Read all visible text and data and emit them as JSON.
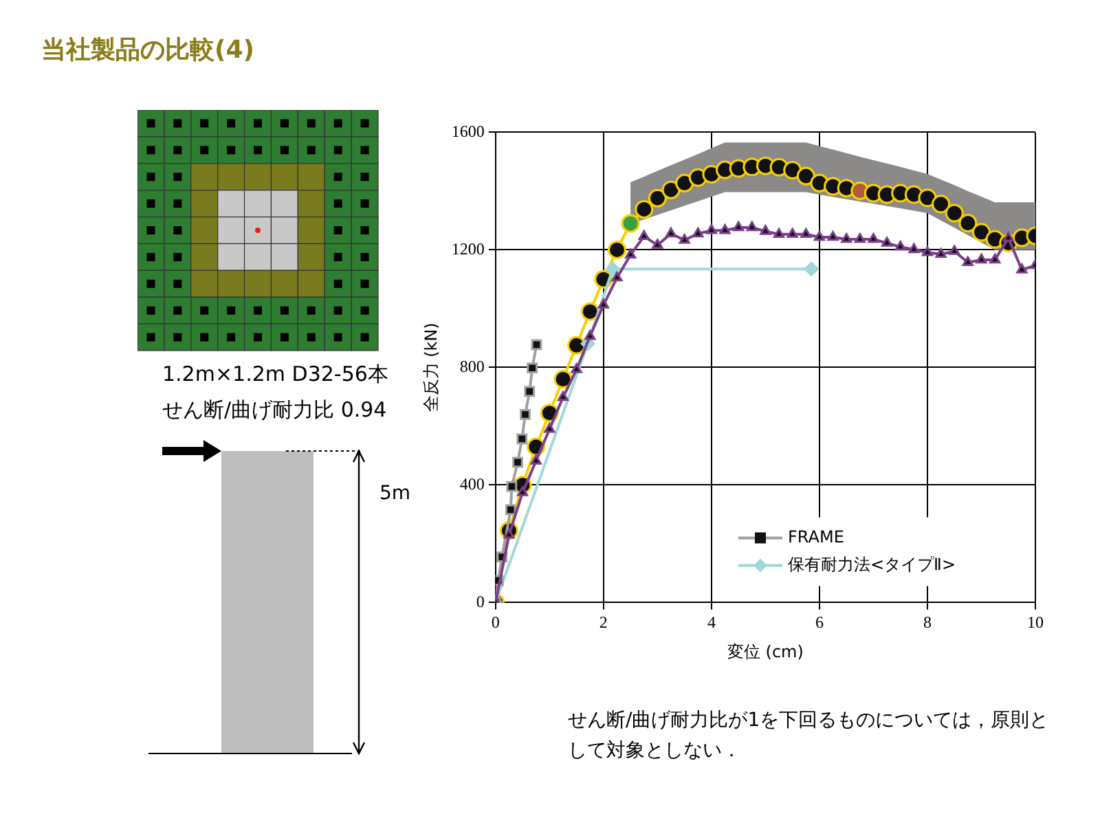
{
  "chart_data": {
    "type": "line",
    "title": "当社製品の比較(4)",
    "xlabel": "変位 (cm)",
    "ylabel": "全反力 (kN)",
    "xlim": [
      0,
      10
    ],
    "xticks": [
      0,
      2,
      4,
      6,
      8,
      10
    ],
    "ylim": [
      0,
      1600
    ],
    "yticks": [
      0,
      400,
      800,
      1200,
      1600
    ],
    "grid": true,
    "legend": "bottom right",
    "annotations": [
      "1.2m×1.2m D32-56本",
      "せん断/曲げ耐力比 0.94",
      "5m",
      "せん断/曲げ耐力比が1を下回るものについては，原則として対象としない．"
    ],
    "series": [
      {
        "color": "#7b3f8c",
        "marker": "triangle",
        "x": [
          0,
          0.25,
          0.5,
          0.75,
          1,
          1.25,
          1.5,
          1.75,
          2,
          2.25,
          2.5,
          2.75,
          3,
          3.25,
          3.5,
          3.75,
          4,
          4.25,
          4.5,
          4.75,
          5,
          5.25,
          5.5,
          5.75,
          6,
          6.25,
          6.5,
          6.75,
          7,
          7.25,
          7.5,
          7.75,
          8,
          8.25,
          8.5,
          8.75,
          9,
          9.25,
          9.5,
          9.75,
          10
        ],
        "values": [
          0,
          230,
          374,
          482,
          590,
          698,
          793,
          906,
          1013,
          1105,
          1183,
          1246,
          1216,
          1255,
          1233,
          1255,
          1266,
          1266,
          1276,
          1276,
          1263,
          1253,
          1253,
          1253,
          1243,
          1243,
          1236,
          1236,
          1236,
          1223,
          1210,
          1201,
          1191,
          1185,
          1195,
          1157,
          1166,
          1166,
          1240,
          1132,
          1147
        ]
      },
      {
        "name": "FRAME",
        "color": "#a0a0a0",
        "marker": "square",
        "x": [
          0,
          0.05,
          0.12,
          0.28,
          0.3,
          0.41,
          0.49,
          0.55,
          0.63,
          0.68,
          0.76
        ],
        "values": [
          0,
          75,
          155,
          316,
          395,
          477,
          557,
          640,
          718,
          798,
          877
        ]
      },
      {
        "name": "保有耐力法<タイプⅡ>",
        "color": "#9fd8d8",
        "marker": "diamond",
        "x": [
          0,
          1.71,
          2.17,
          5.85
        ],
        "values": [
          0,
          881,
          1135,
          1135
        ]
      },
      {
        "color": "#f5d000",
        "marker": "circle",
        "x": [
          0,
          0.25,
          0.5,
          0.75,
          1,
          1.25,
          1.5,
          1.75,
          2,
          2.25,
          2.5,
          2.75,
          3,
          3.25,
          3.5,
          3.75,
          4,
          4.25,
          4.5,
          4.75,
          5,
          5.25,
          5.5,
          5.75,
          6,
          6.25,
          6.5,
          6.75,
          7,
          7.25,
          7.5,
          7.75,
          8,
          8.25,
          8.5,
          8.75,
          9,
          9.25,
          9.5,
          9.75,
          10
        ],
        "values": [
          0,
          245,
          400,
          530,
          645,
          760,
          875,
          990,
          1100,
          1200,
          1290,
          1338,
          1376,
          1404,
          1427,
          1446,
          1457,
          1472,
          1477,
          1482,
          1486,
          1481,
          1471,
          1451,
          1427,
          1416,
          1410,
          1401,
          1393,
          1388,
          1393,
          1388,
          1377,
          1356,
          1325,
          1291,
          1260,
          1236,
          1223,
          1241,
          1248
        ],
        "colors": [
          "#111111",
          "#111111",
          "#111111",
          "#111111",
          "#111111",
          "#111111",
          "#111111",
          "#111111",
          "#111111",
          "#111111",
          "#3aa040",
          "#111111",
          "#111111",
          "#111111",
          "#111111",
          "#111111",
          "#111111",
          "#111111",
          "#111111",
          "#111111",
          "#111111",
          "#111111",
          "#111111",
          "#111111",
          "#111111",
          "#111111",
          "#111111",
          "#b05a40",
          "#111111",
          "#111111",
          "#111111",
          "#111111",
          "#111111",
          "#111111",
          "#111111",
          "#111111",
          "#111111",
          "#111111",
          "#111111",
          "#111111",
          "#111111"
        ],
        "lower": [
          null,
          null,
          null,
          null,
          null,
          null,
          null,
          null,
          null,
          null,
          1288,
          1303,
          1319,
          1334,
          1350,
          1365,
          1381,
          1396,
          1396,
          1396,
          1396,
          1396,
          1396,
          1396,
          1388,
          1380,
          1372,
          1364,
          1357,
          1349,
          1341,
          1333,
          1325,
          1300,
          1275,
          1250,
          1225,
          1200,
          1200,
          1200,
          1200
        ],
        "upper": [
          null,
          null,
          null,
          null,
          null,
          null,
          null,
          null,
          null,
          null,
          1430,
          1449,
          1469,
          1488,
          1507,
          1526,
          1546,
          1565,
          1565,
          1565,
          1565,
          1565,
          1565,
          1565,
          1553,
          1541,
          1529,
          1517,
          1505,
          1494,
          1482,
          1470,
          1458,
          1439,
          1420,
          1400,
          1381,
          1362,
          1362,
          1362,
          1362
        ]
      }
    ]
  }
}
